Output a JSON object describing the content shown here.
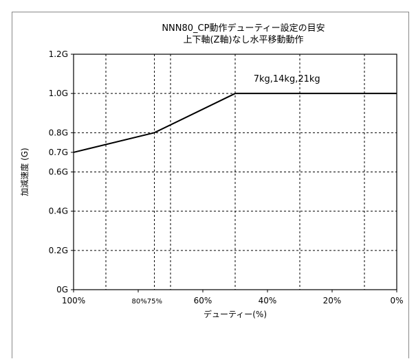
{
  "chart_data": {
    "type": "line",
    "title_lines": [
      "NNN80_CP動作デューティー設定の目安",
      "上下軸(Z軸)なし水平移動動作"
    ],
    "xlabel": "デューティー(%)",
    "ylabel": "加減速度 (G)",
    "x_reversed": true,
    "xlim": [
      0,
      100
    ],
    "ylim": [
      0,
      1.2
    ],
    "x_ticks": [
      {
        "value": 100,
        "label": "100%"
      },
      {
        "value": 80,
        "label": "80%"
      },
      {
        "value": 75,
        "label": "75%"
      },
      {
        "value": 60,
        "label": "60%"
      },
      {
        "value": 40,
        "label": "40%"
      },
      {
        "value": 20,
        "label": "20%"
      },
      {
        "value": 0,
        "label": "0%"
      }
    ],
    "x_grid": [
      90,
      75,
      70,
      50,
      30,
      10
    ],
    "y_ticks": [
      {
        "value": 0,
        "label": "0G"
      },
      {
        "value": 0.2,
        "label": "0.2G"
      },
      {
        "value": 0.4,
        "label": "0.4G"
      },
      {
        "value": 0.6,
        "label": "0.6G"
      },
      {
        "value": 0.7,
        "label": "0.7G"
      },
      {
        "value": 0.8,
        "label": "0.8G"
      },
      {
        "value": 1.0,
        "label": "1.0G"
      },
      {
        "value": 1.2,
        "label": "1.2G"
      }
    ],
    "y_grid": [
      0.2,
      0.4,
      0.6,
      0.8,
      1.0
    ],
    "grid": true,
    "series": [
      {
        "x": [
          100,
          75,
          50,
          0
        ],
        "y": [
          0.7,
          0.8,
          1.0,
          1.0
        ]
      }
    ],
    "annotations": [
      {
        "text": "7kg,14kg,21kg",
        "x": 34,
        "y": 1.06
      }
    ]
  }
}
